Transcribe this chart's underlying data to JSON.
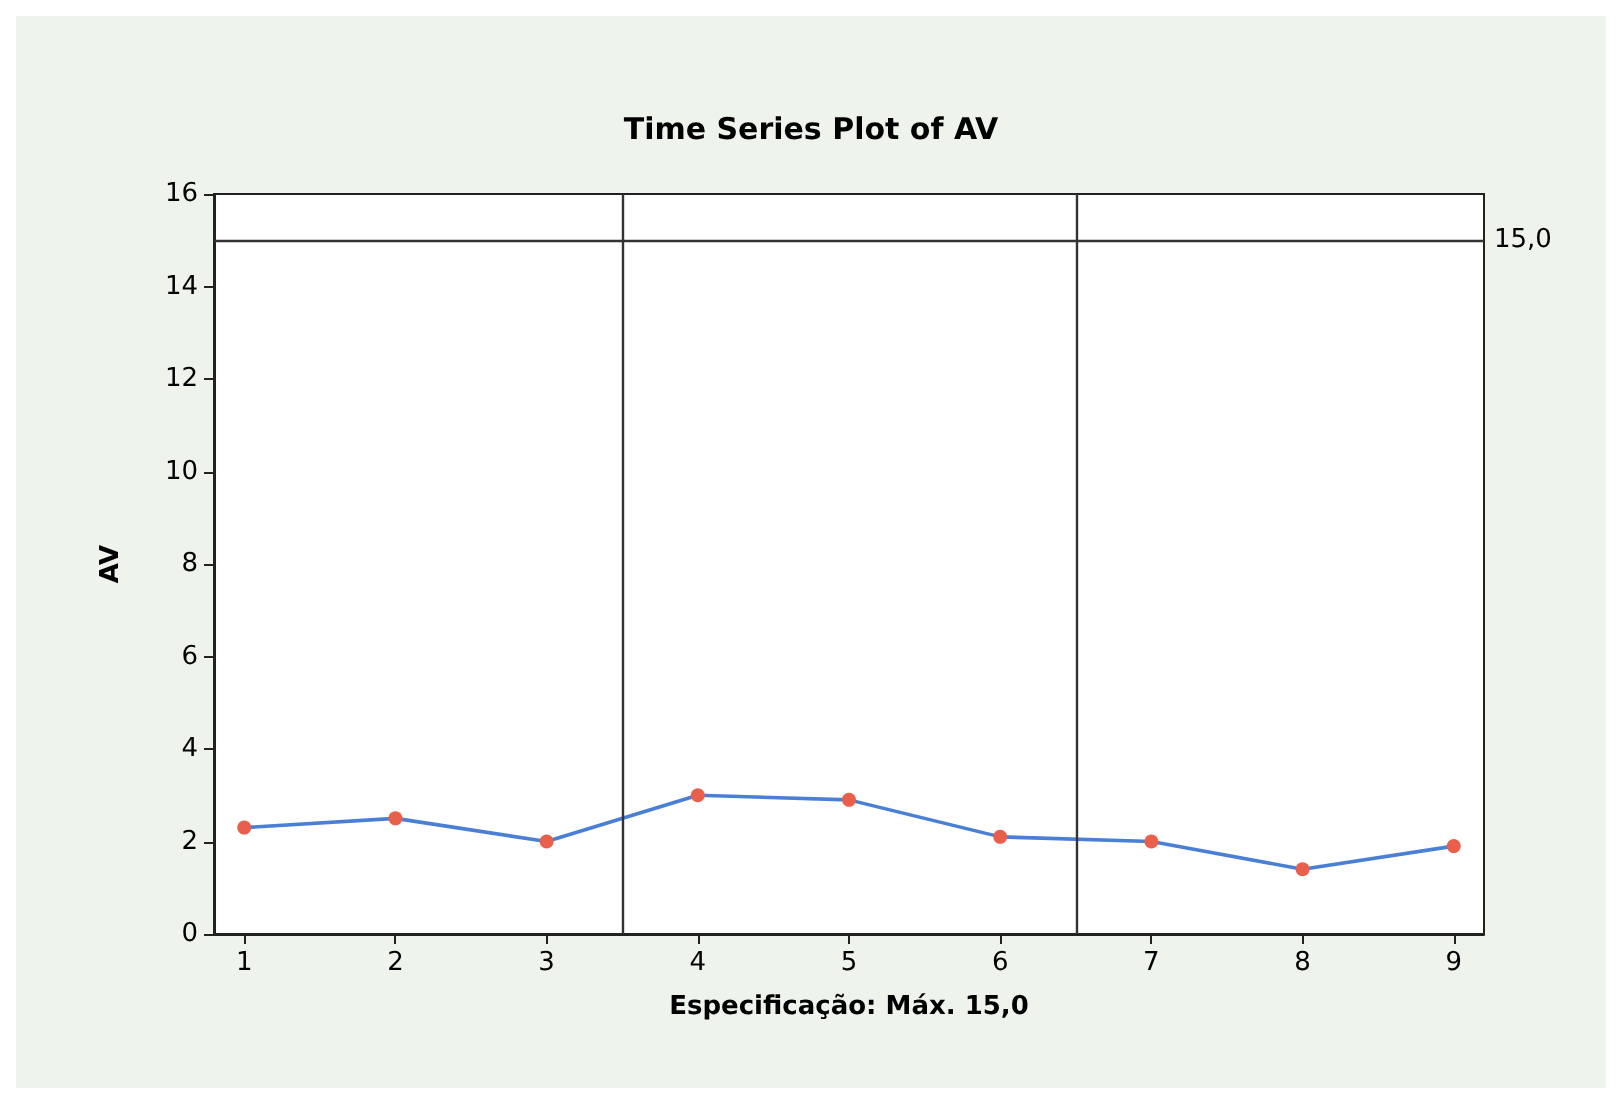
{
  "chart_data": {
    "type": "line",
    "title": "Time Series Plot of AV",
    "xlabel": "Especificação: Máx. 15,0",
    "ylabel": "AV",
    "x": [
      1,
      2,
      3,
      4,
      5,
      6,
      7,
      8,
      9
    ],
    "series": [
      {
        "color": "#4a7fd6",
        "colors": [
          "#e8604c",
          "#e8604c",
          "#e8604c",
          "#e8604c",
          "#e8604c",
          "#e8604c",
          "#e8604c",
          "#e8604c",
          "#e8604c"
        ],
        "values": [
          2.3,
          2.5,
          2.0,
          3.0,
          2.9,
          2.1,
          2.0,
          1.4,
          1.9
        ]
      }
    ],
    "xlim": [
      0.8,
      9.2
    ],
    "xticks": [
      1,
      2,
      3,
      4,
      5,
      6,
      7,
      8,
      9
    ],
    "ylim": [
      0,
      16
    ],
    "yticks": [
      0,
      2,
      4,
      6,
      8,
      10,
      12,
      14,
      16
    ],
    "ref_lines": [
      {
        "axis": "y",
        "value": 15,
        "label": "15,0",
        "color": "#333333"
      },
      {
        "axis": "x",
        "value": 3.5,
        "color": "#333333"
      },
      {
        "axis": "x",
        "value": 6.5,
        "color": "#333333"
      }
    ],
    "grid": false,
    "marker": "circle",
    "line_style": "solid"
  }
}
